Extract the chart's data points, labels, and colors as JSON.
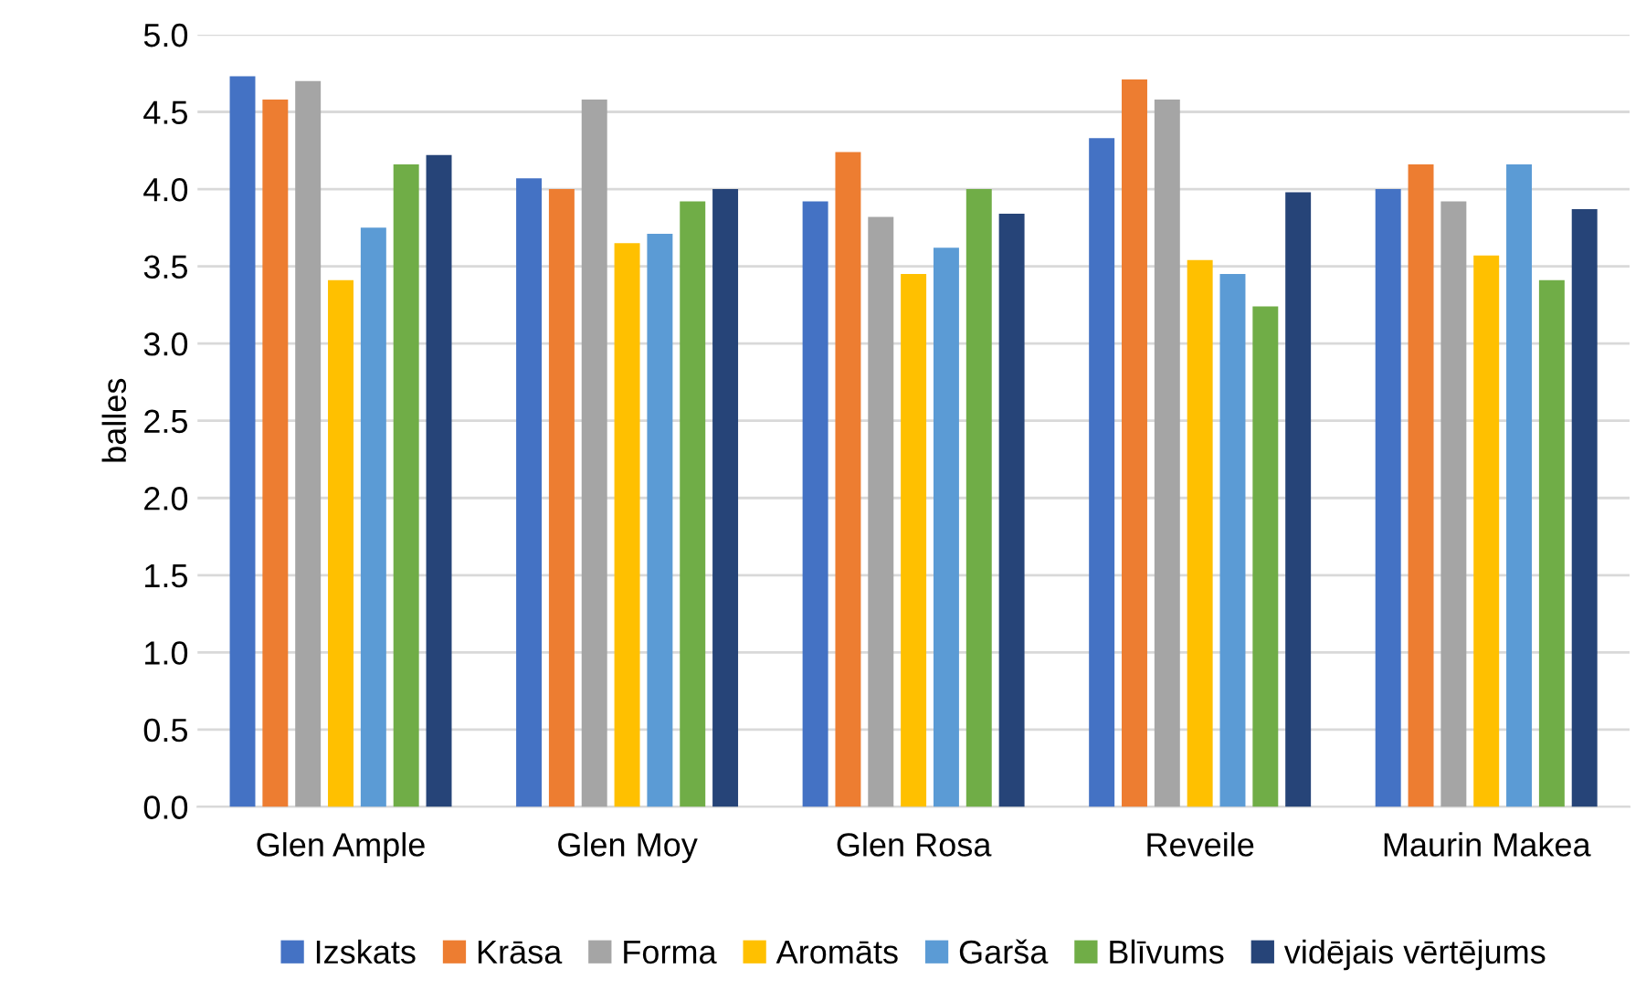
{
  "chart_data": {
    "type": "bar",
    "ylabel": "balles",
    "categories": [
      "Glen Ample",
      "Glen Moy",
      "Glen Rosa",
      "Reveile",
      "Maurin Makea"
    ],
    "series": [
      {
        "name": "Izskats",
        "color": "#4472c4",
        "values": [
          4.73,
          4.07,
          3.92,
          4.33,
          4.0
        ]
      },
      {
        "name": "Krāsa",
        "color": "#ed7d31",
        "values": [
          4.58,
          4.0,
          4.24,
          4.71,
          4.16
        ]
      },
      {
        "name": "Forma",
        "color": "#a5a5a5",
        "values": [
          4.7,
          4.58,
          3.82,
          4.58,
          3.92
        ]
      },
      {
        "name": "Aromāts",
        "color": "#ffc000",
        "values": [
          3.41,
          3.65,
          3.45,
          3.54,
          3.57
        ]
      },
      {
        "name": "Garša",
        "color": "#5b9bd5",
        "values": [
          3.75,
          3.71,
          3.62,
          3.45,
          4.16
        ]
      },
      {
        "name": "Blīvums",
        "color": "#70ad47",
        "values": [
          4.16,
          3.92,
          4.0,
          3.24,
          3.41
        ]
      },
      {
        "name": "vidējais vērtējums",
        "color": "#264478",
        "values": [
          4.22,
          4.0,
          3.84,
          3.98,
          3.87
        ]
      }
    ],
    "ylim": [
      0,
      5
    ],
    "yticks": [
      {
        "value": 0,
        "label": "0.0"
      },
      {
        "value": 0.5,
        "label": "0.5"
      },
      {
        "value": 1,
        "label": "1.0"
      },
      {
        "value": 1.5,
        "label": "1.5"
      },
      {
        "value": 2,
        "label": "2.0"
      },
      {
        "value": 2.5,
        "label": "2.5"
      },
      {
        "value": 3,
        "label": "3.0"
      },
      {
        "value": 3.5,
        "label": "3.5"
      },
      {
        "value": 4,
        "label": "4.0"
      },
      {
        "value": 4.5,
        "label": "4.5"
      },
      {
        "value": 5,
        "label": "5.0"
      }
    ],
    "grid": "y",
    "legend": "bottom"
  }
}
